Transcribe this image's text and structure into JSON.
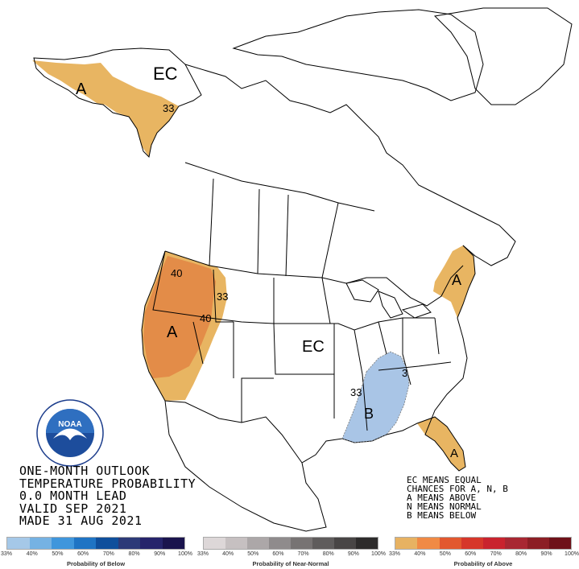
{
  "title_lines": [
    "ONE-MONTH OUTLOOK",
    "TEMPERATURE PROBABILITY",
    "0.0 MONTH LEAD",
    "VALID SEP 2021",
    "MADE 31 AUG 2021"
  ],
  "legend_lines": [
    "EC MEANS EQUAL",
    "CHANCES FOR A, N, B",
    "A MEANS ABOVE",
    "N MEANS NORMAL",
    "B MEANS BELOW"
  ],
  "map_labels": {
    "ec_alaska": "EC",
    "ec_conus": "EC",
    "a_alaska": "A",
    "a_west": "A",
    "a_northeast": "A",
    "a_florida": "A",
    "b_south": "B",
    "c_33_alaska": "33",
    "c_40_oregon": "40",
    "c_33_idaho": "33",
    "c_40_nevada": "40",
    "c_33_south_w": "33",
    "c_33_south_e": "33",
    "c_33_northeast": "3"
  },
  "colors": {
    "above_33": "#e8b562",
    "above_40": "#e38c48",
    "below_33": "#a9c5e6",
    "border": "#000000"
  },
  "scales": {
    "tick_labels": [
      "33%",
      "40%",
      "50%",
      "60%",
      "70%",
      "80%",
      "90%",
      "100%"
    ],
    "below": {
      "title": "Probability of Below",
      "colors": [
        "#a5c8e8",
        "#75b2e3",
        "#3f96dc",
        "#1f74c4",
        "#0f4f9c",
        "#2c3a78",
        "#26246b",
        "#1a144d"
      ]
    },
    "normal": {
      "title": "Probability of Near-Normal",
      "colors": [
        "#ddd7d8",
        "#c6c0c1",
        "#aca7a8",
        "#8f8b8c",
        "#777373",
        "#5f5c5c",
        "#484545",
        "#2d2b2b"
      ]
    },
    "above": {
      "title": "Probability of Above",
      "colors": [
        "#e7b262",
        "#f08a45",
        "#e2582f",
        "#d6372a",
        "#c9232e",
        "#a82732",
        "#8c1e25",
        "#6e1119"
      ]
    }
  },
  "logo": {
    "name": "NOAA",
    "ring_text": "NATIONAL OCEANIC AND ATMOSPHERIC ADMINISTRATION",
    "bottom_text": "U.S. DEPARTMENT OF COMMERCE"
  }
}
